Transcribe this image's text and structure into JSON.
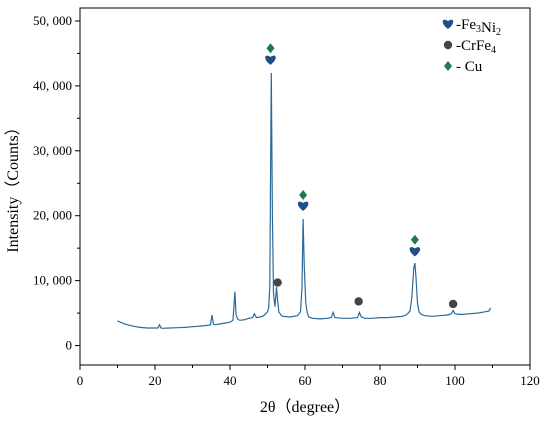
{
  "chart_data": {
    "type": "line",
    "xlabel": "2θ（degree）",
    "ylabel": "Intensity（Counts）",
    "xlim": [
      0,
      120
    ],
    "ylim": [
      -3000,
      52000
    ],
    "x_ticks": [
      0,
      20,
      40,
      60,
      80,
      100,
      120
    ],
    "x_tick_labels": [
      "0",
      "20",
      "40",
      "60",
      "80",
      "100",
      "120"
    ],
    "y_ticks": [
      0,
      10000,
      20000,
      30000,
      40000,
      50000
    ],
    "y_tick_labels": [
      "0",
      "10, 000",
      "20, 000",
      "30, 000",
      "40, 000",
      "50, 000"
    ],
    "grid": false,
    "legend_position": "top-right",
    "line_color": "#2a6a9a",
    "series": [
      {
        "x": [
          10,
          12,
          14,
          16,
          18,
          20,
          20.8,
          21.2,
          21.6,
          22,
          24,
          26,
          28,
          30,
          32,
          34,
          34.8,
          35.2,
          35.6,
          36,
          38,
          40,
          40.8,
          41.3,
          41.6,
          42,
          42.5,
          43,
          44,
          45,
          46,
          46.5,
          47,
          48,
          49,
          49.5,
          50,
          50.3,
          50.6,
          50.8,
          51,
          51.3,
          51.6,
          52,
          52.4,
          52.7,
          53,
          53.5,
          54,
          56,
          58,
          58.8,
          59.2,
          59.5,
          59.8,
          60.2,
          60.6,
          61,
          62,
          64,
          66,
          67,
          67.5,
          68,
          70,
          72,
          74,
          74.5,
          75,
          76,
          78,
          80,
          82,
          84,
          86,
          87,
          88,
          88.5,
          89,
          89.3,
          89.6,
          90,
          90.4,
          91,
          92,
          94,
          96,
          98,
          99,
          99.5,
          100,
          101,
          102,
          104,
          106,
          108,
          109,
          109.5
        ],
        "y": [
          3800,
          3300,
          3000,
          2800,
          2700,
          2700,
          2700,
          3200,
          2700,
          2650,
          2700,
          2750,
          2800,
          2900,
          3000,
          3100,
          3200,
          4700,
          3300,
          3200,
          3400,
          3600,
          3900,
          8300,
          4800,
          4100,
          3900,
          3900,
          4000,
          4200,
          4300,
          4900,
          4300,
          4400,
          4600,
          4900,
          5200,
          5800,
          9000,
          25000,
          42000,
          20000,
          8000,
          6000,
          9000,
          7000,
          5200,
          4800,
          4500,
          4400,
          4600,
          5200,
          9000,
          19500,
          12000,
          6500,
          5000,
          4400,
          4200,
          4100,
          4200,
          4300,
          5100,
          4300,
          4200,
          4200,
          4300,
          5100,
          4400,
          4200,
          4200,
          4300,
          4300,
          4400,
          4500,
          4700,
          5300,
          7500,
          12000,
          12700,
          10500,
          6500,
          5200,
          4800,
          4600,
          4500,
          4600,
          4700,
          4900,
          5400,
          4900,
          4800,
          4800,
          4900,
          5000,
          5200,
          5300,
          5800
        ]
      }
    ],
    "markers": [
      {
        "phase": "Fe3Ni2",
        "symbol": "heart",
        "color": "#1f4f8a",
        "x": 50.8,
        "y": 44000
      },
      {
        "phase": "Fe3Ni2",
        "symbol": "heart",
        "color": "#1f4f8a",
        "x": 59.5,
        "y": 21500
      },
      {
        "phase": "Fe3Ni2",
        "symbol": "heart",
        "color": "#1f4f8a",
        "x": 89.3,
        "y": 14500
      },
      {
        "phase": "Cu",
        "symbol": "diamond",
        "color": "#1e7a4a",
        "x": 50.8,
        "y": 45800
      },
      {
        "phase": "Cu",
        "symbol": "diamond",
        "color": "#1e7a4a",
        "x": 59.5,
        "y": 23200
      },
      {
        "phase": "Cu",
        "symbol": "diamond",
        "color": "#1e7a4a",
        "x": 89.3,
        "y": 16300
      },
      {
        "phase": "CrFe4",
        "symbol": "circle",
        "color": "#444444",
        "x": 52.7,
        "y": 9700
      },
      {
        "phase": "CrFe4",
        "symbol": "circle",
        "color": "#444444",
        "x": 74.3,
        "y": 6800
      },
      {
        "phase": "CrFe4",
        "symbol": "circle",
        "color": "#444444",
        "x": 99.5,
        "y": 6400
      }
    ],
    "legend": [
      {
        "symbol": "heart",
        "color": "#1f4f8a",
        "prefix": "-Fe",
        "s1": "3",
        "mid": "Ni",
        "s2": "2"
      },
      {
        "symbol": "circle",
        "color": "#444444",
        "prefix": "-CrFe",
        "s1": "4",
        "mid": "",
        "s2": ""
      },
      {
        "symbol": "diamond",
        "color": "#1e7a4a",
        "prefix": "- Cu",
        "s1": "",
        "mid": "",
        "s2": ""
      }
    ]
  }
}
